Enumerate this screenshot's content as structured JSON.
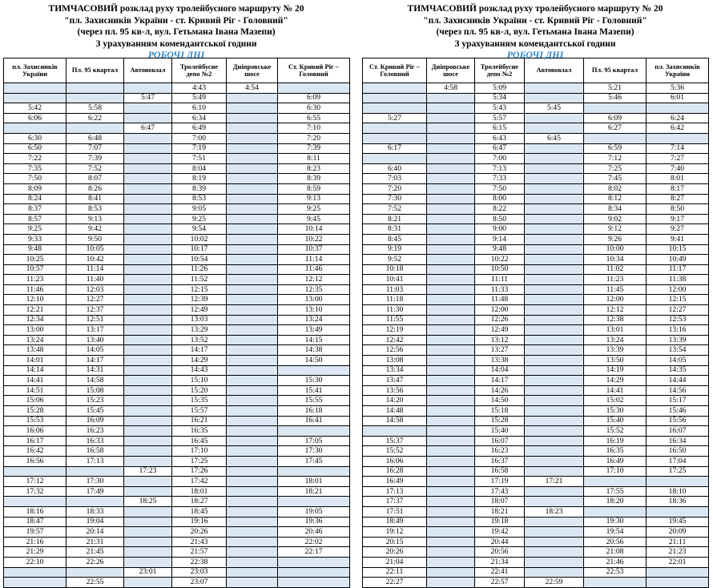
{
  "left": {
    "title": [
      "ТИМЧАСОВИЙ розклад руху тролейбусного маршруту № 20",
      "\"пл. Захисників України  - ст. Кривий Ріг - Головний\"",
      "(через пл. 95 кв-л, вул. Гетьмана Івана Мазепи)",
      "З урахуванням комендантської години"
    ],
    "days_label": "РОБОЧІ ДНІ",
    "columns": [
      "пл. Захисників України",
      "Пл. 95 квартал",
      "Автовокзал",
      "Тролейбусне депо №2",
      "Дніпровське шосе",
      "Ст. Кривий Ріг – Головний"
    ],
    "rows": [
      [
        "",
        "",
        "",
        "4:43",
        "4:54",
        ""
      ],
      [
        "",
        "",
        "5:47",
        "5:49",
        "",
        "6:09"
      ],
      [
        "5:42",
        "5:58",
        "",
        "6:10",
        "",
        "6:30"
      ],
      [
        "6:06",
        "6:22",
        "",
        "6:34",
        "",
        "6:55"
      ],
      [
        "",
        "",
        "6:47",
        "6:49",
        "",
        "7:10"
      ],
      [
        "6:30",
        "6:48",
        "",
        "7:00",
        "",
        "7:20"
      ],
      [
        "6:50",
        "7:07",
        "",
        "7:19",
        "",
        "7:39"
      ],
      [
        "7:22",
        "7:39",
        "",
        "7:51",
        "",
        "8:11"
      ],
      [
        "7:35",
        "7:52",
        "",
        "8:04",
        "",
        "8:23"
      ],
      [
        "7:50",
        "8:07",
        "",
        "8:19",
        "",
        "8:39"
      ],
      [
        "8:09",
        "8:26",
        "",
        "8:39",
        "",
        "8:59"
      ],
      [
        "8:24",
        "8:41",
        "",
        "8:53",
        "",
        "9:13"
      ],
      [
        "8:37",
        "8:53",
        "",
        "9:05",
        "",
        "9:25"
      ],
      [
        "8:57",
        "9:13",
        "",
        "9:25",
        "",
        "9:45"
      ],
      [
        "9:25",
        "9:42",
        "",
        "9:54",
        "",
        "10:14"
      ],
      [
        "9:33",
        "9:50",
        "",
        "10:02",
        "",
        "10:22"
      ],
      [
        "9:48",
        "10:05",
        "",
        "10:17",
        "",
        "10:37"
      ],
      [
        "10:25",
        "10:42",
        "",
        "10:54",
        "",
        "11:14"
      ],
      [
        "10:57",
        "11:14",
        "",
        "11:26",
        "",
        "11:46"
      ],
      [
        "11:23",
        "11:40",
        "",
        "11:52",
        "",
        "12:12"
      ],
      [
        "11:46",
        "12:03",
        "",
        "12:15",
        "",
        "12:35"
      ],
      [
        "12:10",
        "12:27",
        "",
        "12:39",
        "",
        "13:00"
      ],
      [
        "12:21",
        "12:37",
        "",
        "12:49",
        "",
        "13:10"
      ],
      [
        "12:34",
        "12:51",
        "",
        "13:03",
        "",
        "13:24"
      ],
      [
        "13:00",
        "13:17",
        "",
        "13:29",
        "",
        "13:49"
      ],
      [
        "13:24",
        "13:40",
        "",
        "13:52",
        "",
        "14:15"
      ],
      [
        "13:48",
        "14:05",
        "",
        "14:17",
        "",
        "14:38"
      ],
      [
        "14:01",
        "14:17",
        "",
        "14:29",
        "",
        "14:50"
      ],
      [
        "14:14",
        "14:31",
        "",
        "14:43",
        "",
        ""
      ],
      [
        "14:41",
        "14:58",
        "",
        "15:10",
        "",
        "15:30"
      ],
      [
        "14:51",
        "15:08",
        "",
        "15:20",
        "",
        "15:41"
      ],
      [
        "15:06",
        "15:23",
        "",
        "15:35",
        "",
        "15:55"
      ],
      [
        "15:28",
        "15:45",
        "",
        "15:57",
        "",
        "16:18"
      ],
      [
        "15:53",
        "16:09",
        "",
        "16:21",
        "",
        "16:41"
      ],
      [
        "16:06",
        "16:23",
        "",
        "16:35",
        "",
        ""
      ],
      [
        "16:17",
        "16:33",
        "",
        "16:45",
        "",
        "17:05"
      ],
      [
        "16:42",
        "16:58",
        "",
        "17:10",
        "",
        "17:30"
      ],
      [
        "16:56",
        "17:13",
        "",
        "17:25",
        "",
        "17:45"
      ],
      [
        "",
        "",
        "17:23",
        "17:26",
        "",
        ""
      ],
      [
        "17:12",
        "17:30",
        "",
        "17:42",
        "",
        "18:01"
      ],
      [
        "17:32",
        "17:49",
        "",
        "18:01",
        "",
        "18:21"
      ],
      [
        "",
        "",
        "18:25",
        "18:27",
        "",
        ""
      ],
      [
        "18:16",
        "18:33",
        "",
        "18:45",
        "",
        "19:05"
      ],
      [
        "18:47",
        "19:04",
        "",
        "19:16",
        "",
        "19:36"
      ],
      [
        "19:57",
        "20:14",
        "",
        "20:26",
        "",
        "20:46"
      ],
      [
        "21:16",
        "21:31",
        "",
        "21:43",
        "",
        "22:02"
      ],
      [
        "21:29",
        "21:45",
        "",
        "21:57",
        "",
        "22:17"
      ],
      [
        "22:10",
        "22:26",
        "",
        "22:38",
        "",
        ""
      ],
      [
        "",
        "",
        "23:01",
        "23:03",
        "",
        ""
      ],
      [
        "",
        "22:55",
        "",
        "23:07",
        "",
        ""
      ]
    ]
  },
  "right": {
    "title": [
      "ТИМЧАСОВИЙ розклад руху тролейбусного маршруту № 20",
      "\"пл. Захисників України  - ст. Кривий Ріг - Головний\"",
      "(через пл. 95 кв-л, вул. Гетьмана Івана Мазепи)",
      "З урахуванням комендантської години"
    ],
    "days_label": "РОБОЧІ ДНІ",
    "columns": [
      "Ст. Кривий Ріг – Головний",
      "Дніпровське шосе",
      "Тролейбусне депо №2",
      "Автовокзал",
      "Пл. 95 квартал",
      "пл. Захисників України"
    ],
    "rows": [
      [
        "",
        "4:58",
        "5:09",
        "",
        "5:21",
        "5:36"
      ],
      [
        "",
        "",
        "5:34",
        "",
        "5:46",
        "6:01"
      ],
      [
        "",
        "",
        "5:43",
        "5:45",
        "",
        ""
      ],
      [
        "5:27",
        "",
        "5:57",
        "",
        "6:09",
        "6:24"
      ],
      [
        "",
        "",
        "6:15",
        "",
        "6:27",
        "6:42"
      ],
      [
        "",
        "",
        "6:43",
        "6:45",
        "",
        ""
      ],
      [
        "6:17",
        "",
        "6:47",
        "",
        "6:59",
        "7:14"
      ],
      [
        "",
        "",
        "7:00",
        "",
        "7:12",
        "7:27"
      ],
      [
        "6:40",
        "",
        "7:13",
        "",
        "7:25",
        "7:40"
      ],
      [
        "7:03",
        "",
        "7:33",
        "",
        "7:45",
        "8:01"
      ],
      [
        "7:20",
        "",
        "7:50",
        "",
        "8:02",
        "8:17"
      ],
      [
        "7:30",
        "",
        "8:00",
        "",
        "8:12",
        "8:27"
      ],
      [
        "7:52",
        "",
        "8:22",
        "",
        "8:34",
        "8:50"
      ],
      [
        "8:21",
        "",
        "8:50",
        "",
        "9:02",
        "9:17"
      ],
      [
        "8:31",
        "",
        "9:00",
        "",
        "9:12",
        "9:27"
      ],
      [
        "8:45",
        "",
        "9:14",
        "",
        "9:26",
        "9:41"
      ],
      [
        "9:19",
        "",
        "9:48",
        "",
        "10:00",
        "10:15"
      ],
      [
        "9:52",
        "",
        "10:22",
        "",
        "10:34",
        "10:49"
      ],
      [
        "10:18",
        "",
        "10:50",
        "",
        "11:02",
        "11:17"
      ],
      [
        "10:41",
        "",
        "11:11",
        "",
        "11:23",
        "11:38"
      ],
      [
        "11:03",
        "",
        "11:33",
        "",
        "11:45",
        "12:00"
      ],
      [
        "11:18",
        "",
        "11:48",
        "",
        "12:00",
        "12:15"
      ],
      [
        "11:30",
        "",
        "12:00",
        "",
        "12:12",
        "12:27"
      ],
      [
        "11:55",
        "",
        "12:26",
        "",
        "12:38",
        "12:53"
      ],
      [
        "12:19",
        "",
        "12:49",
        "",
        "13:01",
        "13:16"
      ],
      [
        "12:42",
        "",
        "13:12",
        "",
        "13:24",
        "13:39"
      ],
      [
        "12:56",
        "",
        "13:27",
        "",
        "13:39",
        "13:54"
      ],
      [
        "13:08",
        "",
        "13:38",
        "",
        "13:50",
        "14:05"
      ],
      [
        "13:34",
        "",
        "14:04",
        "",
        "14:19",
        "14:35"
      ],
      [
        "13:47",
        "",
        "14:17",
        "",
        "14:29",
        "14:44"
      ],
      [
        "13:56",
        "",
        "14:26",
        "",
        "14:41",
        "14:56"
      ],
      [
        "14:20",
        "",
        "14:50",
        "",
        "15:02",
        "15:17"
      ],
      [
        "14:48",
        "",
        "15:18",
        "",
        "15:30",
        "15:46"
      ],
      [
        "14:58",
        "",
        "15:28",
        "",
        "15:40",
        "15:56"
      ],
      [
        "",
        "",
        "15:40",
        "",
        "15:52",
        "16:07"
      ],
      [
        "15:37",
        "",
        "16:07",
        "",
        "16:19",
        "16:34"
      ],
      [
        "15:52",
        "",
        "16:23",
        "",
        "16:35",
        "16:50"
      ],
      [
        "16:06",
        "",
        "16:37",
        "",
        "16:49",
        "17:04"
      ],
      [
        "16:28",
        "",
        "16:58",
        "",
        "17:10",
        "17:25"
      ],
      [
        "16:49",
        "",
        "17:19",
        "17:21",
        "",
        ""
      ],
      [
        "17:13",
        "",
        "17:43",
        "",
        "17:55",
        "18:10"
      ],
      [
        "17:37",
        "",
        "18:07",
        "",
        "18:20",
        "18:36"
      ],
      [
        "17:51",
        "",
        "18:21",
        "18:23",
        "",
        ""
      ],
      [
        "18:49",
        "",
        "19:18",
        "",
        "19:30",
        "19:45"
      ],
      [
        "19:12",
        "",
        "19:42",
        "",
        "19:54",
        "20:09"
      ],
      [
        "20:15",
        "",
        "20:44",
        "",
        "20:56",
        "21:11"
      ],
      [
        "20:26",
        "",
        "20:56",
        "",
        "21:08",
        "21:23"
      ],
      [
        "21:04",
        "",
        "21:34",
        "",
        "21:46",
        "22:01"
      ],
      [
        "22:11",
        "",
        "22:41",
        "",
        "22:53",
        ""
      ],
      [
        "22:27",
        "",
        "22:57",
        "22:59",
        "",
        ""
      ]
    ]
  },
  "colors": {
    "shade": "#dbe7f3",
    "days_label": "#2e86c8"
  }
}
